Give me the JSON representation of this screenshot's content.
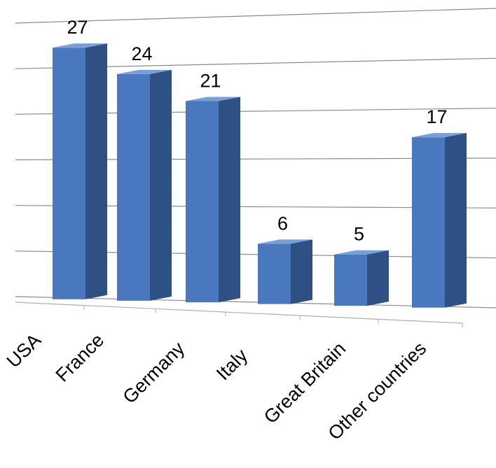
{
  "chart_data": {
    "type": "bar",
    "categories": [
      "USA",
      "France",
      "Germany",
      "Italy",
      "Great Britain",
      "Other countries"
    ],
    "values": [
      27,
      24,
      21,
      6,
      5,
      17
    ],
    "title": "",
    "xlabel": "",
    "ylabel": "",
    "ylim": [
      0,
      30
    ],
    "grid": true,
    "legend": "none",
    "three_d": true
  },
  "colors": {
    "bar_front": "#4a78bf",
    "bar_side": "#2e5085",
    "bar_top": "#7a9fd6",
    "grid": "#8c8c8c"
  }
}
